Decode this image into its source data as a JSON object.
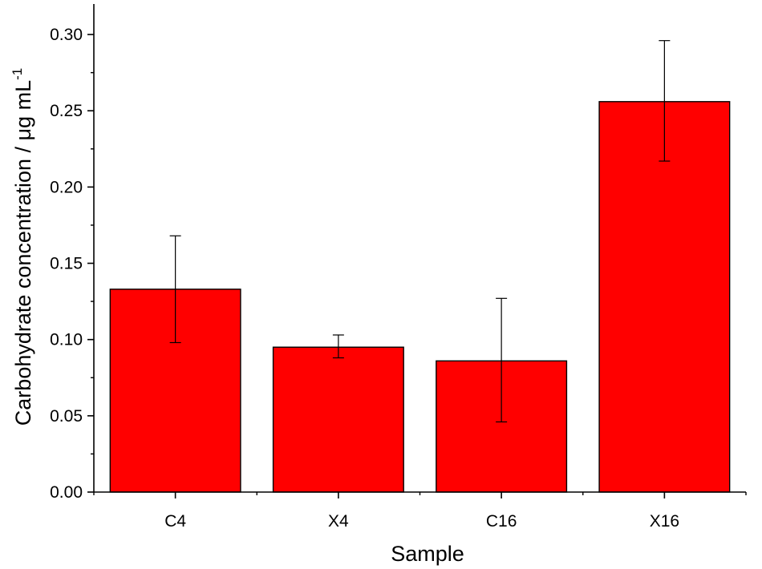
{
  "chart_data": {
    "type": "bar",
    "categories": [
      "C4",
      "X4",
      "C16",
      "X16"
    ],
    "values": [
      0.133,
      0.095,
      0.086,
      0.256
    ],
    "error_low": [
      0.098,
      0.088,
      0.046,
      0.217
    ],
    "error_high": [
      0.168,
      0.103,
      0.127,
      0.296
    ],
    "xlabel": "Sample",
    "ylabel_main": "Carbohydrate concentration / μg mL",
    "ylabel_sup": "-1",
    "ylim": [
      0,
      0.32
    ],
    "yticks": [
      "0.00",
      "0.05",
      "0.10",
      "0.15",
      "0.20",
      "0.25",
      "0.30"
    ],
    "ytick_values": [
      0,
      0.05,
      0.1,
      0.15,
      0.2,
      0.25,
      0.3
    ],
    "bar_color": "#ff0000",
    "grid": false
  }
}
